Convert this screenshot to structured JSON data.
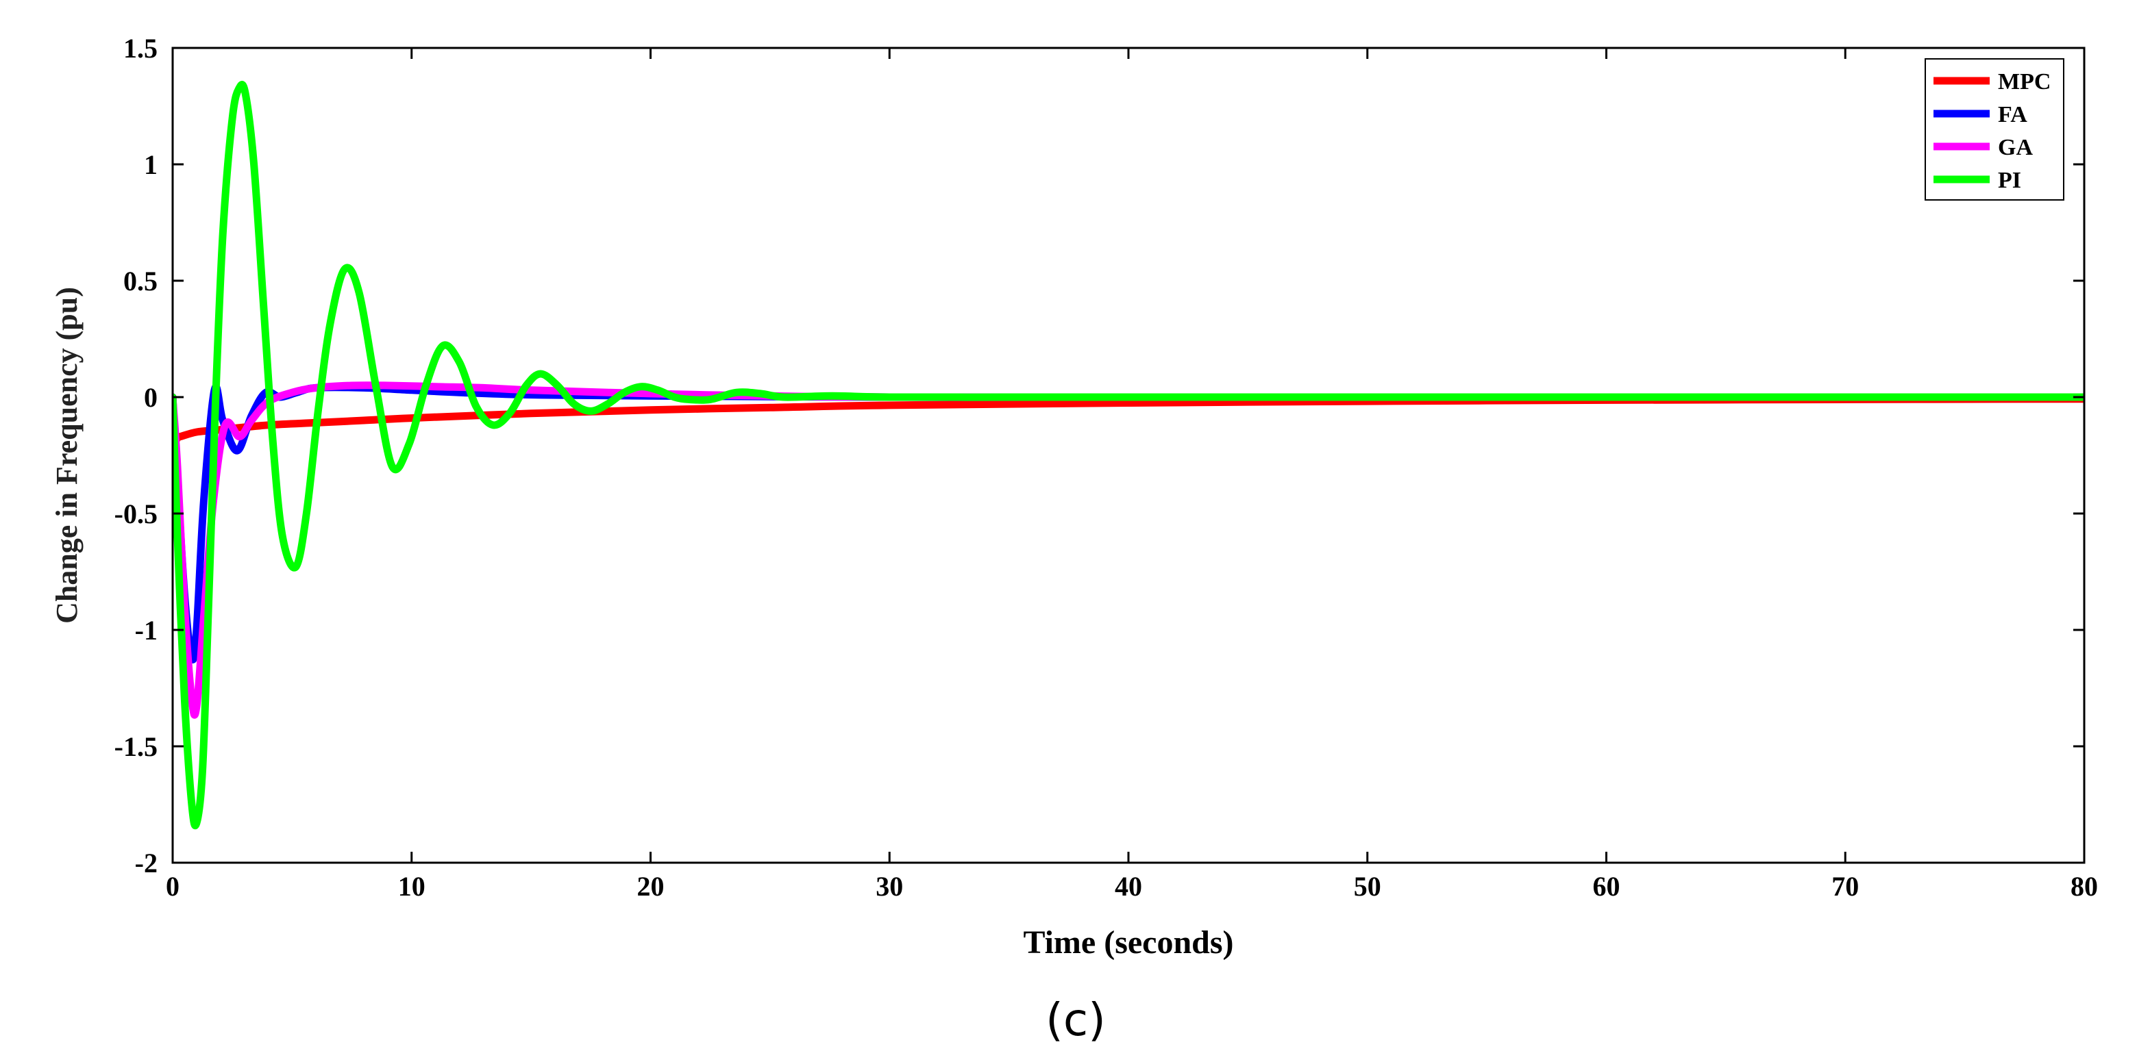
{
  "chart_data": {
    "type": "line",
    "xlabel": "Time (seconds)",
    "ylabel": "Change in Frequency (pu)",
    "caption": "(c)",
    "xlim": [
      0,
      80
    ],
    "ylim": [
      -2,
      1.5
    ],
    "xticks": [
      0,
      10,
      20,
      30,
      40,
      50,
      60,
      70,
      80
    ],
    "xtick_labels": [
      "0",
      "10",
      "20",
      "30",
      "40",
      "50",
      "60",
      "70",
      "80"
    ],
    "yticks": [
      1.5,
      1,
      0.5,
      0,
      -0.5,
      -1,
      -1.5,
      -2
    ],
    "ytick_labels": [
      "1.5",
      "1",
      "0.5",
      "0",
      "-0.5",
      "-1",
      "-1.5",
      "-2"
    ],
    "grid": false,
    "legend_position": "top-right",
    "series": [
      {
        "name": "MPC",
        "color": "#ff0000",
        "x": [
          0,
          0.1,
          0.3,
          1,
          2,
          4,
          6,
          8,
          10,
          15,
          20,
          25,
          30,
          40,
          50,
          60,
          70,
          80
        ],
        "y": [
          0,
          -0.17,
          -0.17,
          -0.15,
          -0.14,
          -0.12,
          -0.11,
          -0.1,
          -0.09,
          -0.07,
          -0.055,
          -0.045,
          -0.035,
          -0.025,
          -0.018,
          -0.013,
          -0.01,
          -0.008
        ]
      },
      {
        "name": "FA",
        "color": "#0000ff",
        "x": [
          0,
          0.2,
          0.5,
          0.8,
          1.0,
          1.3,
          1.75,
          2.1,
          2.7,
          3.3,
          3.9,
          4.5,
          5.2,
          6,
          8,
          10,
          12,
          15,
          20,
          30,
          40,
          80
        ],
        "y": [
          0,
          -0.35,
          -0.85,
          -1.12,
          -1.0,
          -0.45,
          0.03,
          -0.1,
          -0.23,
          -0.08,
          0.02,
          0.0,
          0.02,
          0.04,
          0.04,
          0.03,
          0.02,
          0.01,
          0.005,
          0.0,
          0.0,
          0.0
        ]
      },
      {
        "name": "GA",
        "color": "#ff00ff",
        "x": [
          0,
          0.2,
          0.5,
          0.8,
          1.0,
          1.3,
          1.7,
          2.2,
          2.8,
          3.3,
          4,
          5,
          6,
          7.5,
          9,
          11,
          13,
          15,
          20,
          25,
          30,
          40,
          80
        ],
        "y": [
          0,
          -0.3,
          -0.9,
          -1.3,
          -1.33,
          -0.95,
          -0.45,
          -0.12,
          -0.17,
          -0.1,
          -0.02,
          0.02,
          0.04,
          0.05,
          0.05,
          0.045,
          0.04,
          0.03,
          0.015,
          0.005,
          0.0,
          0.0,
          0.0
        ]
      },
      {
        "name": "PI",
        "color": "#00ff00",
        "x": [
          0,
          0.2,
          0.5,
          0.8,
          1.0,
          1.25,
          1.5,
          1.8,
          2.1,
          2.5,
          2.8,
          3.05,
          3.4,
          3.8,
          4.2,
          4.6,
          5.15,
          5.6,
          6.1,
          6.6,
          7.2,
          7.8,
          8.5,
          9.2,
          9.9,
          10.6,
          11.3,
          12.0,
          12.7,
          13.4,
          14.1,
          14.8,
          15.4,
          16.1,
          16.8,
          17.5,
          18.2,
          18.9,
          19.6,
          20.3,
          21.0,
          21.6,
          22.5,
          23.6,
          24.6,
          25.6,
          27.6,
          30,
          35,
          40,
          50,
          80
        ],
        "y": [
          0,
          -0.6,
          -1.3,
          -1.75,
          -1.83,
          -1.6,
          -0.9,
          0.0,
          0.7,
          1.2,
          1.33,
          1.3,
          1.0,
          0.4,
          -0.2,
          -0.6,
          -0.73,
          -0.5,
          -0.05,
          0.32,
          0.55,
          0.45,
          0.05,
          -0.3,
          -0.2,
          0.05,
          0.22,
          0.15,
          -0.04,
          -0.12,
          -0.07,
          0.05,
          0.1,
          0.05,
          -0.03,
          -0.06,
          -0.03,
          0.02,
          0.045,
          0.03,
          0.0,
          -0.01,
          -0.01,
          0.02,
          0.015,
          0.0,
          0.005,
          0.0,
          0.0,
          0.0,
          0.0,
          0.0
        ]
      }
    ]
  }
}
